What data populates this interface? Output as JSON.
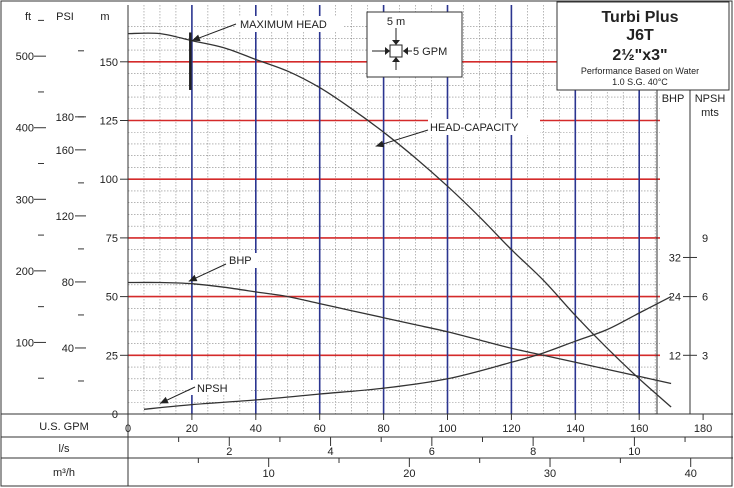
{
  "brand": {
    "title": "Turbi Plus",
    "model": "J6T",
    "size": "2½\"x3\"",
    "note1": "Performance Based on Water",
    "note2": "1.0 S.G. 40°C"
  },
  "axes": {
    "ft_label": "ft",
    "psi_label": "PSI",
    "m_label": "m",
    "bhp_label": "BHP",
    "npsh_label": "NPSH",
    "npsh_unit": "mts",
    "gpm_label": "U.S. GPM",
    "ls_label": "l/s",
    "m3h_label": "m³/h",
    "ft_ticks": [
      "100",
      "200",
      "300",
      "400",
      "500"
    ],
    "psi_ticks": [
      "40",
      "80",
      "120",
      "160",
      "180"
    ],
    "m_ticks": [
      "0",
      "25",
      "50",
      "75",
      "100",
      "125",
      "150"
    ],
    "bhp_ticks": [
      "12",
      "24",
      "32"
    ],
    "npsh_ticks": [
      "3",
      "6",
      "9"
    ],
    "gpm_ticks": [
      "0",
      "20",
      "40",
      "60",
      "80",
      "100",
      "120",
      "140",
      "160",
      "180"
    ],
    "ls_ticks": [
      "2",
      "4",
      "6",
      "8",
      "10"
    ],
    "m3h_ticks": [
      "10",
      "20",
      "30",
      "40"
    ]
  },
  "legend_box": {
    "top": "5 m",
    "right": "5 GPM"
  },
  "annotations": {
    "max_head": "MAXIMUM HEAD",
    "head_capacity": "HEAD-CAPACITY",
    "bhp": "BHP",
    "npsh": "NPSH"
  },
  "colors": {
    "red": "#d42a2a",
    "blue": "#2b3590",
    "curve": "#333333"
  },
  "chart_data": {
    "type": "line",
    "title": "Turbi Plus J6T 2½\"x3\"",
    "xlabel": "U.S. GPM",
    "ylabel": "m",
    "xlim": [
      0,
      180
    ],
    "ylim": [
      0,
      165
    ],
    "grid": true,
    "series": [
      {
        "name": "HEAD-CAPACITY",
        "axis": "m",
        "x": [
          0,
          10,
          20,
          30,
          40,
          50,
          60,
          70,
          80,
          90,
          100,
          110,
          120,
          130,
          140,
          150,
          160,
          170
        ],
        "y": [
          162,
          162,
          159,
          156,
          151,
          146,
          139,
          130,
          120,
          109,
          97,
          84,
          70,
          57,
          42,
          28,
          15,
          3
        ]
      },
      {
        "name": "BHP",
        "axis": "m",
        "x": [
          0,
          10,
          20,
          30,
          40,
          50,
          60,
          70,
          80,
          90,
          100,
          110,
          120,
          130,
          140,
          150,
          160,
          170
        ],
        "y": [
          56,
          56,
          55.5,
          54,
          52,
          50,
          47,
          44,
          41,
          38,
          35,
          31.5,
          28,
          25,
          22,
          19,
          16,
          13
        ]
      },
      {
        "name": "NPSH",
        "axis": "m",
        "x": [
          5,
          20,
          40,
          60,
          80,
          100,
          120,
          130,
          140,
          150,
          160,
          170
        ],
        "y": [
          2,
          4,
          6,
          8.5,
          11,
          15,
          22,
          26,
          31,
          36,
          43,
          50
        ]
      }
    ]
  }
}
